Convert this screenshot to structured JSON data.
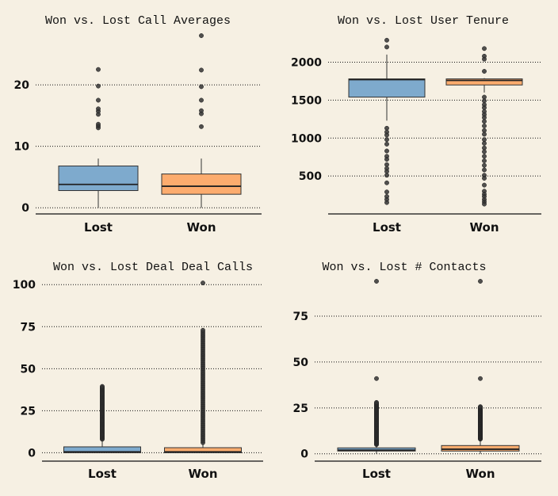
{
  "colors": {
    "background": "#f6f0e3",
    "lost": "#7eaacd",
    "won": "#fcac6e",
    "outlier": "#333333",
    "grid": "#111111"
  },
  "chart_data": [
    {
      "type": "box",
      "title": "Won vs. Lost Call Averages",
      "categories": [
        "Lost",
        "Won"
      ],
      "ylim": [
        -1,
        28
      ],
      "yticks": [
        0,
        10,
        20
      ],
      "grid": "horizontal dotted",
      "boxes": [
        {
          "category": "Lost",
          "min": 0,
          "q1": 2.8,
          "median": 3.8,
          "q3": 6.8,
          "max": 8,
          "outliers": [
            13,
            13.3,
            13.6,
            15.2,
            15.7,
            16.1,
            17.5,
            19.8,
            22.5
          ]
        },
        {
          "category": "Won",
          "min": 0,
          "q1": 2.2,
          "median": 3.5,
          "q3": 5.5,
          "max": 8,
          "outliers": [
            13.2,
            15.3,
            15.8,
            17.5,
            19.7,
            22.4,
            28
          ]
        }
      ]
    },
    {
      "type": "box",
      "title": "Won vs. Lost User Tenure",
      "categories": [
        "Lost",
        "Won"
      ],
      "ylim": [
        0,
        2350
      ],
      "yticks": [
        500,
        1000,
        1500,
        2000
      ],
      "grid": "horizontal dotted",
      "boxes": [
        {
          "category": "Lost",
          "min": 1230,
          "q1": 1540,
          "median": 1770,
          "q3": 1780,
          "max": 2100,
          "outliers": [
            2200,
            2290,
            1130,
            1080,
            1040,
            980,
            920,
            830,
            760,
            720,
            650,
            600,
            560,
            510,
            410,
            290,
            230,
            190,
            150
          ]
        },
        {
          "category": "Won",
          "min": 1600,
          "q1": 1700,
          "median": 1760,
          "q3": 1780,
          "max": 1790,
          "outliers": [
            2180,
            2080,
            2040,
            1880,
            1540,
            1490,
            1440,
            1400,
            1350,
            1310,
            1270,
            1220,
            1160,
            1100,
            1050,
            980,
            930,
            870,
            820,
            760,
            700,
            640,
            580,
            510,
            470,
            380,
            300,
            260,
            230,
            190,
            160,
            130
          ]
        }
      ]
    },
    {
      "type": "box",
      "title": "Won vs. Lost Deal Deal Calls",
      "categories": [
        "Lost",
        "Won"
      ],
      "ylim": [
        -5,
        102
      ],
      "yticks": [
        0,
        25,
        50,
        75,
        100
      ],
      "grid": "horizontal dotted",
      "boxes": [
        {
          "category": "Lost",
          "min": 0,
          "q1": 0,
          "median": 0.5,
          "q3": 3.5,
          "max": 8,
          "outliers_range": [
            8,
            40
          ]
        },
        {
          "category": "Won",
          "min": 0,
          "q1": 0,
          "median": 0.5,
          "q3": 3,
          "max": 6,
          "outliers_range": [
            6,
            74
          ],
          "outliers": [
            101
          ]
        }
      ]
    },
    {
      "type": "box",
      "title": "Won vs. Lost # Contacts",
      "categories": [
        "Lost",
        "Won"
      ],
      "ylim": [
        -4,
        94
      ],
      "yticks": [
        0,
        25,
        50,
        75
      ],
      "grid": "horizontal dotted",
      "boxes": [
        {
          "category": "Lost",
          "min": 0,
          "q1": 1.5,
          "median": 2,
          "q3": 3,
          "max": 5,
          "outliers_range": [
            5,
            28
          ],
          "outliers": [
            41,
            94
          ]
        },
        {
          "category": "Won",
          "min": 0,
          "q1": 1.5,
          "median": 2.5,
          "q3": 4.5,
          "max": 8,
          "outliers_range": [
            8,
            26
          ],
          "outliers": [
            41,
            94
          ]
        }
      ]
    }
  ]
}
